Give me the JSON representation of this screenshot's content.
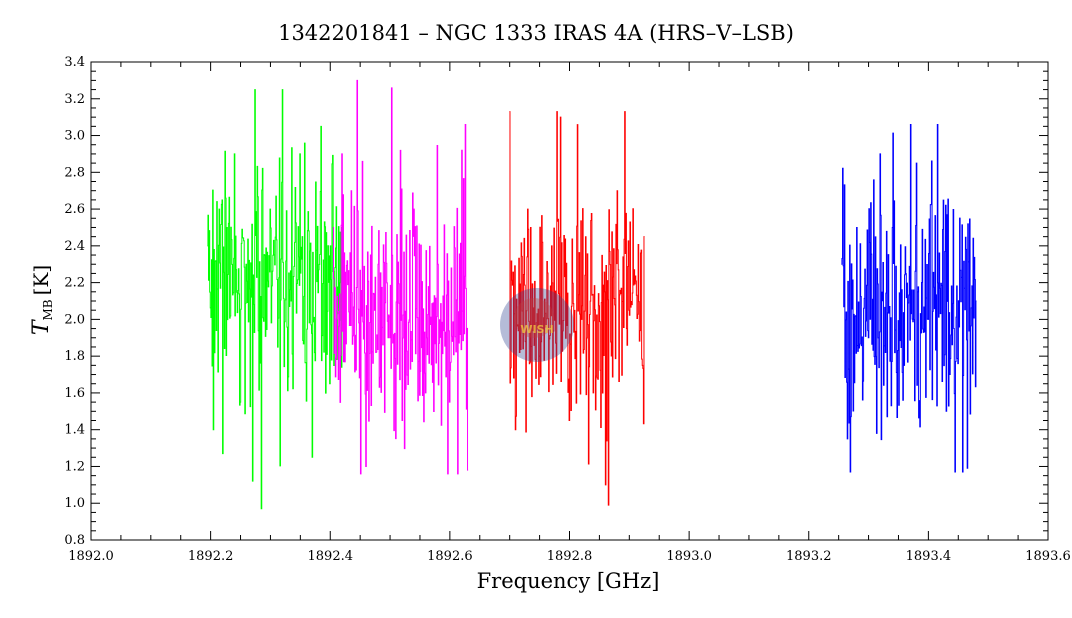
{
  "chart_data": {
    "type": "line",
    "title": "1342201841 – NGC 1333 IRAS 4A (HRS–V–LSB)",
    "xlabel": "Frequency [GHz]",
    "ylabel_main": "T",
    "ylabel_sub": "MB",
    "ylabel_unit": "[K]",
    "xlim": [
      1892.0,
      1893.6
    ],
    "ylim": [
      0.8,
      3.4
    ],
    "x_ticks": [
      "1892.0",
      "1892.2",
      "1892.4",
      "1892.6",
      "1892.8",
      "1893.0",
      "1893.2",
      "1893.4",
      "1893.6"
    ],
    "x_tick_values": [
      1892.0,
      1892.2,
      1892.4,
      1892.6,
      1892.8,
      1893.0,
      1893.2,
      1893.4,
      1893.6
    ],
    "y_ticks": [
      "0.8",
      "1.0",
      "1.2",
      "1.4",
      "1.6",
      "1.8",
      "2.0",
      "2.2",
      "2.4",
      "2.6",
      "2.8",
      "3.0",
      "3.2",
      "3.4"
    ],
    "y_tick_values": [
      0.8,
      1.0,
      1.2,
      1.4,
      1.6,
      1.8,
      2.0,
      2.2,
      2.4,
      2.6,
      2.8,
      3.0,
      3.2,
      3.4
    ],
    "grid": false,
    "series": [
      {
        "color": "#00ff00",
        "x_range": [
          1892.195,
          1892.42
        ],
        "mean": 2.2,
        "noise": 0.35,
        "min": 0.97,
        "max": 3.25,
        "points": [
          [
            1892.195,
            2.4
          ],
          [
            1892.205,
            1.4
          ],
          [
            1892.215,
            2.6
          ],
          [
            1892.22,
            1.27
          ],
          [
            1892.24,
            2.9
          ],
          [
            1892.25,
            1.55
          ],
          [
            1892.26,
            2.3
          ],
          [
            1892.27,
            1.12
          ],
          [
            1892.285,
            0.97
          ],
          [
            1892.3,
            2.6
          ],
          [
            1892.32,
            3.25
          ],
          [
            1892.335,
            2.1
          ],
          [
            1892.35,
            2.9
          ],
          [
            1892.37,
            1.25
          ],
          [
            1892.385,
            3.05
          ],
          [
            1892.4,
            2.4
          ],
          [
            1892.42,
            2.5
          ]
        ]
      },
      {
        "color": "#ff00ff",
        "x_range": [
          1892.405,
          1892.63
        ],
        "mean": 2.0,
        "noise": 0.35,
        "min": 1.16,
        "max": 3.3,
        "points": [
          [
            1892.405,
            2.5
          ],
          [
            1892.42,
            2.9
          ],
          [
            1892.435,
            2.7
          ],
          [
            1892.445,
            3.3
          ],
          [
            1892.46,
            1.2
          ],
          [
            1892.48,
            2.3
          ],
          [
            1892.5,
            1.9
          ],
          [
            1892.52,
            1.45
          ],
          [
            1892.54,
            2.6
          ],
          [
            1892.56,
            1.6
          ],
          [
            1892.58,
            2.3
          ],
          [
            1892.6,
            1.55
          ],
          [
            1892.62,
            2.92
          ],
          [
            1892.63,
            1.18
          ]
        ]
      },
      {
        "color": "#ff0000",
        "x_range": [
          1892.7,
          1892.925
        ],
        "mean": 2.05,
        "noise": 0.35,
        "min": 0.99,
        "max": 3.13,
        "points": [
          [
            1892.7,
            3.13
          ],
          [
            1892.71,
            1.4
          ],
          [
            1892.73,
            2.6
          ],
          [
            1892.75,
            1.8
          ],
          [
            1892.77,
            2.4
          ],
          [
            1892.785,
            3.1
          ],
          [
            1892.8,
            1.45
          ],
          [
            1892.82,
            2.0
          ],
          [
            1892.84,
            1.6
          ],
          [
            1892.86,
            1.1
          ],
          [
            1892.865,
            0.99
          ],
          [
            1892.88,
            2.7
          ],
          [
            1892.9,
            2.05
          ],
          [
            1892.925,
            2.45
          ]
        ]
      },
      {
        "color": "#0000ff",
        "x_range": [
          1893.255,
          1893.48
        ],
        "mean": 2.1,
        "noise": 0.35,
        "min": 1.17,
        "max": 3.06,
        "points": [
          [
            1893.255,
            2.3
          ],
          [
            1893.265,
            1.35
          ],
          [
            1893.28,
            2.5
          ],
          [
            1893.3,
            1.9
          ],
          [
            1893.32,
            2.9
          ],
          [
            1893.34,
            2.5
          ],
          [
            1893.36,
            1.75
          ],
          [
            1893.38,
            2.85
          ],
          [
            1893.4,
            2.0
          ],
          [
            1893.415,
            3.06
          ],
          [
            1893.43,
            1.5
          ],
          [
            1893.445,
            1.17
          ],
          [
            1893.465,
            1.19
          ],
          [
            1893.48,
            2.1
          ]
        ]
      }
    ]
  },
  "watermark": {
    "text": "WISH"
  }
}
